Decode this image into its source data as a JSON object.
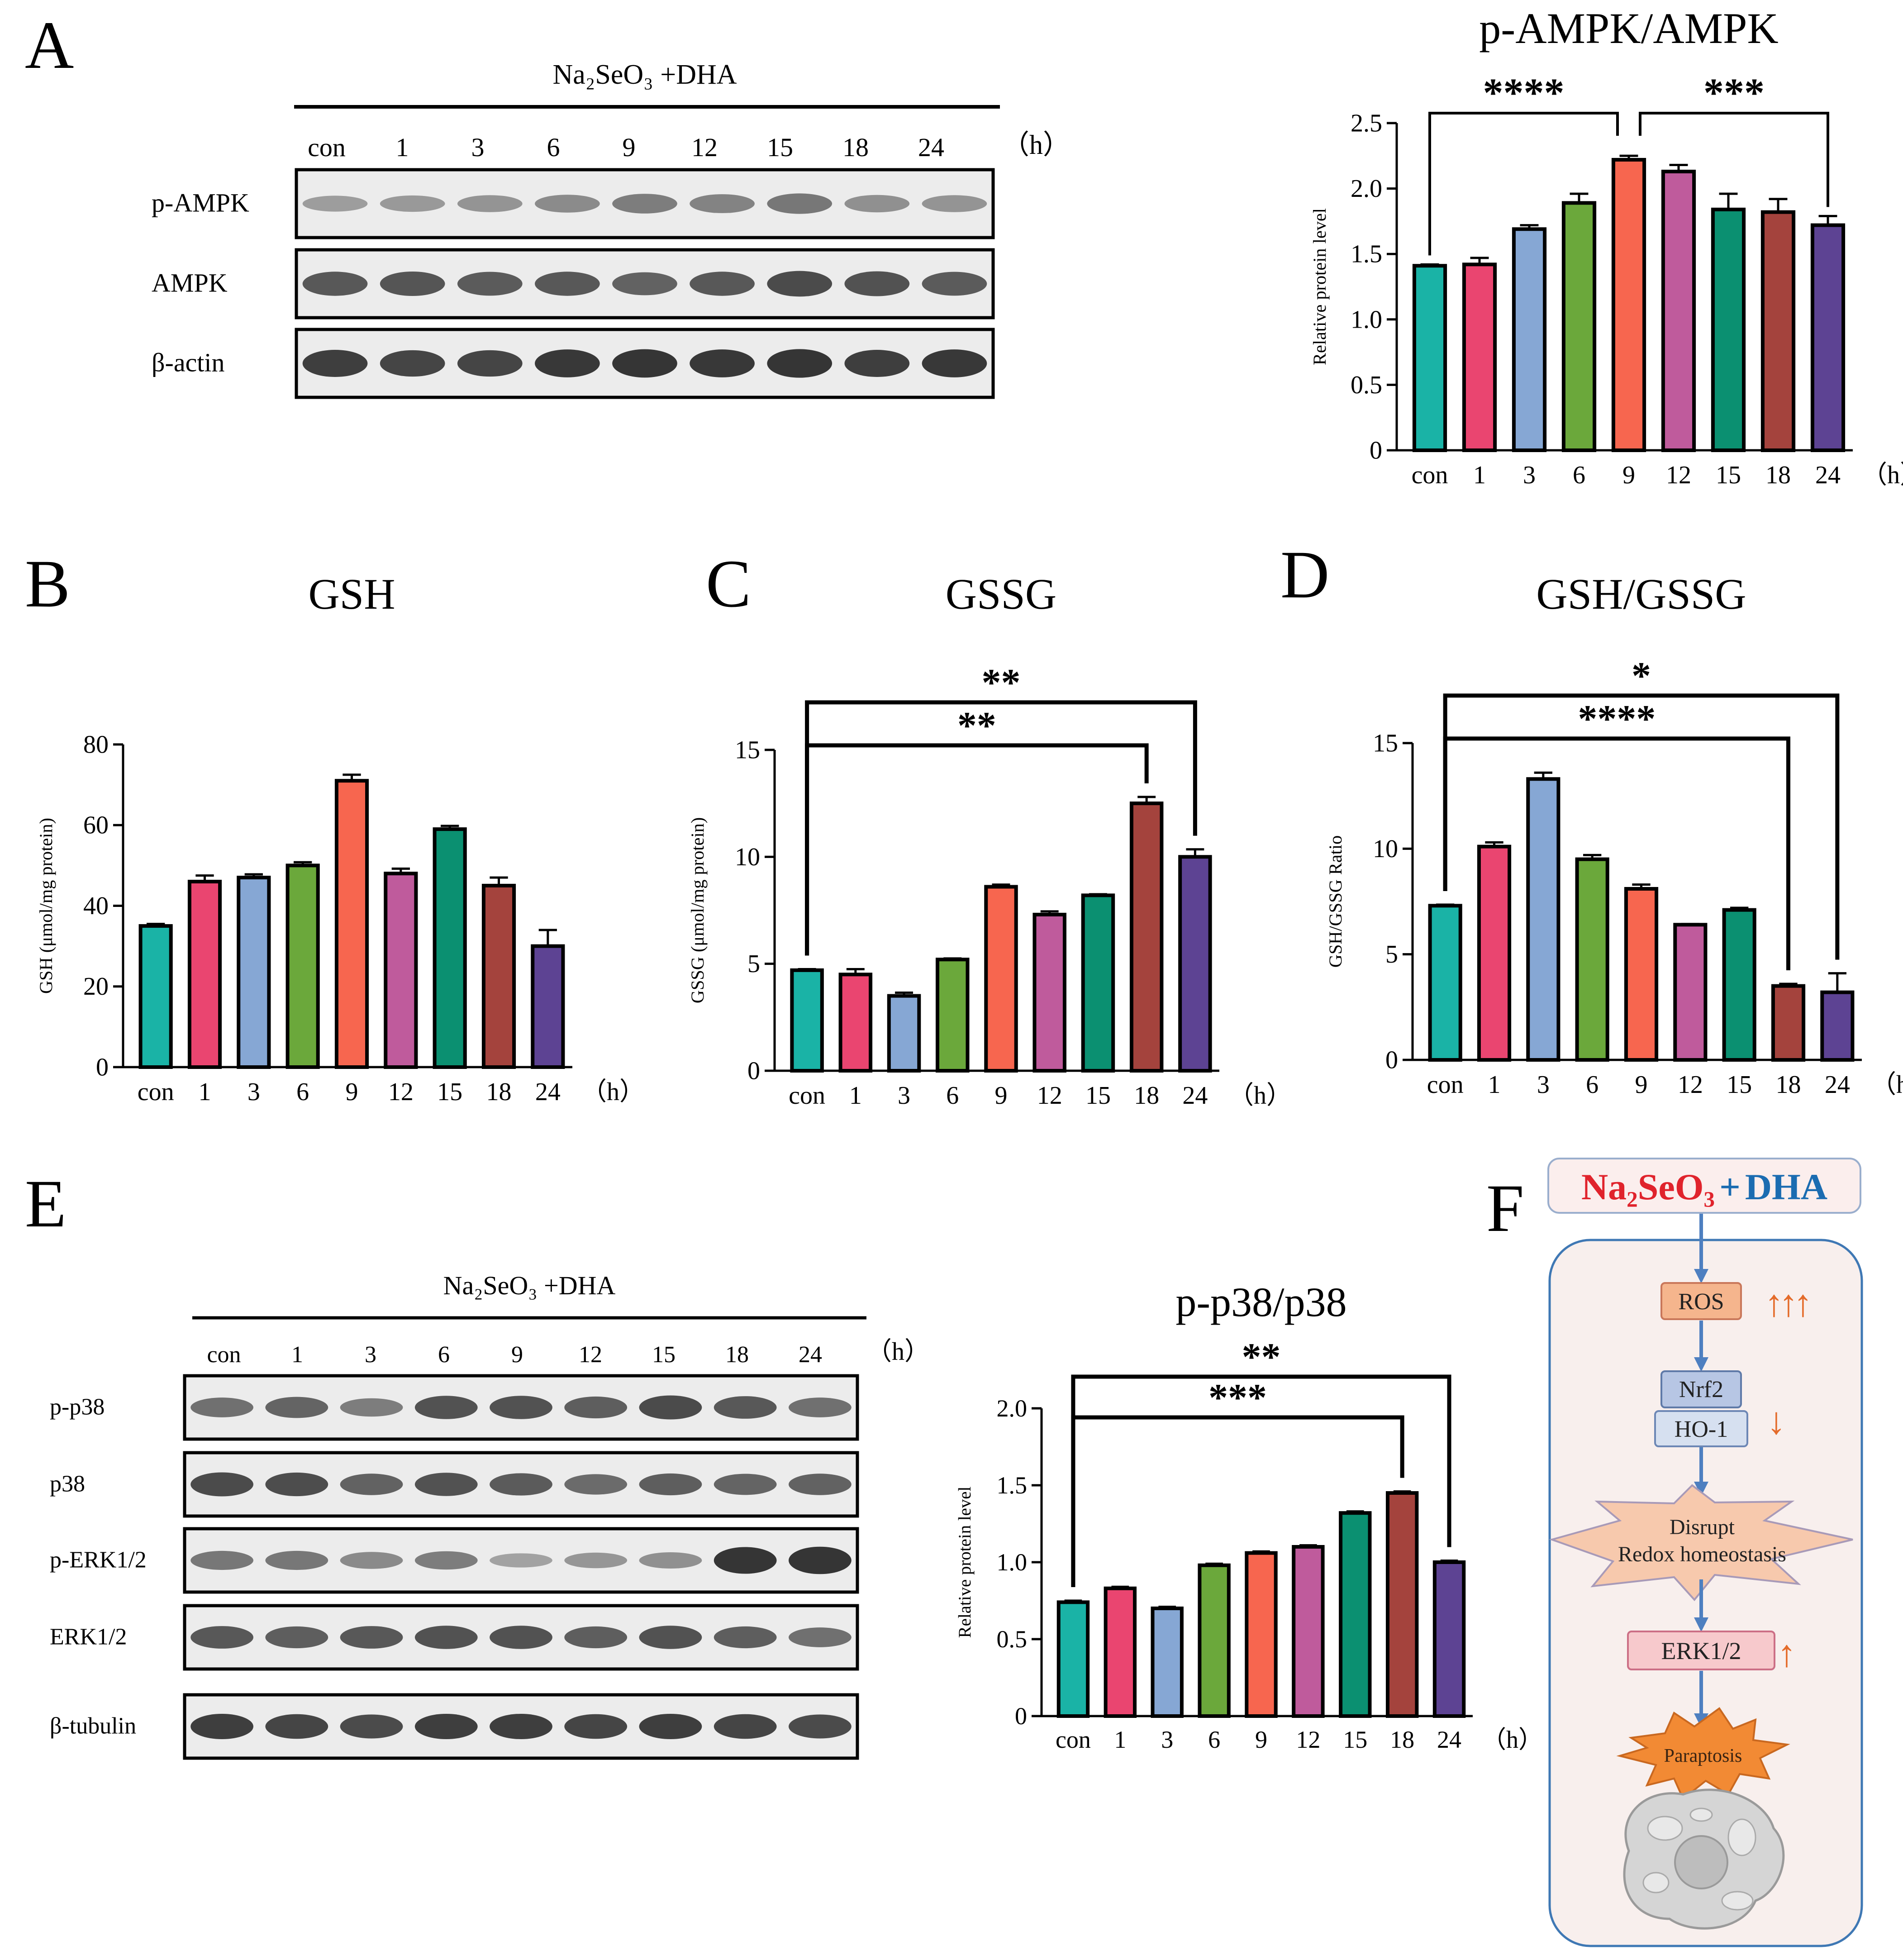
{
  "colors": {
    "bars": [
      "#1ab3a6",
      "#ea4570",
      "#86a7d4",
      "#6ba83b",
      "#f7664f",
      "#bf5b9c",
      "#0b9071",
      "#a4433d",
      "#5d4393"
    ],
    "band": "#2b2b2b",
    "flow_red": "#e0232c",
    "flow_blue": "#1b6cb1",
    "arrow_blue": "#4e7fc0",
    "arrow_orange": "#e46b2a",
    "cell_bg": "#f8efed",
    "cell_border": "#3f78b4",
    "ros_fill": "#f5b58d",
    "nrf_fill": "#b7c6e4",
    "disrupt_fill": "#f7c9ad",
    "erk_fill": "#f7c9cc",
    "paraptosis_fill": "#f28a34"
  },
  "panels": {
    "A": {
      "letter": "A",
      "blot_header": "Na₂SeO₃ +DHA",
      "lanes": [
        "con",
        "1",
        "3",
        "6",
        "9",
        "12",
        "15",
        "18",
        "24"
      ],
      "unit": "（h）",
      "rows": [
        "p-AMPK",
        "AMPK",
        "β-actin"
      ]
    },
    "B": {
      "letter": "B"
    },
    "C": {
      "letter": "C"
    },
    "D": {
      "letter": "D"
    },
    "E": {
      "letter": "E",
      "blot_header": "Na₂SeO₃ +DHA",
      "lanes": [
        "con",
        "1",
        "3",
        "6",
        "9",
        "12",
        "15",
        "18",
        "24"
      ],
      "unit": "（h）",
      "rows": [
        "p-p38",
        "p38",
        "p-ERK1/2",
        "ERK1/2",
        "β-tubulin"
      ]
    },
    "F": {
      "letter": "F",
      "top_red": "Na₂SeO₃",
      "top_plus": "+",
      "top_blue": "DHA",
      "ros": "ROS",
      "ros_arrows": "↑↑↑",
      "nrf2": "Nrf2",
      "ho1": "HO-1",
      "down_arrow": "↓",
      "disrupt_line1": "Disrupt",
      "disrupt_line2": "Redox homeostasis",
      "erk": "ERK1/2",
      "up_arrow": "↑",
      "paraptosis": "Paraptosis"
    }
  },
  "chart_data": [
    {
      "id": "ampk",
      "type": "bar",
      "title": "p-AMPK/AMPK",
      "ylabel": "Relative protein level",
      "xlabel": "",
      "unit": "（h）",
      "categories": [
        "con",
        "1",
        "3",
        "6",
        "9",
        "12",
        "15",
        "18",
        "24"
      ],
      "values": [
        1.41,
        1.42,
        1.69,
        1.89,
        2.22,
        2.13,
        1.84,
        1.82,
        1.72
      ],
      "errors": [
        0.01,
        0.05,
        0.03,
        0.07,
        0.03,
        0.05,
        0.12,
        0.1,
        0.07
      ],
      "ylim": [
        0,
        2.5
      ],
      "yticks": [
        "0",
        "0.5",
        "1.0",
        "1.5",
        "2.0",
        "2.5"
      ],
      "significance": [
        {
          "from": 0,
          "to": 4,
          "label": "****"
        },
        {
          "from": 4,
          "to": 8,
          "label": "***"
        }
      ]
    },
    {
      "id": "gsh",
      "type": "bar",
      "title": "GSH",
      "ylabel": "GSH (μmol/mg protein)",
      "xlabel": "",
      "unit": "（h）",
      "categories": [
        "con",
        "1",
        "3",
        "6",
        "9",
        "12",
        "15",
        "18",
        "24"
      ],
      "values": [
        35,
        46,
        47,
        50,
        71,
        48,
        59,
        45,
        30
      ],
      "errors": [
        0.5,
        1.5,
        0.8,
        0.8,
        1.5,
        1.2,
        0.8,
        2.0,
        4.0
      ],
      "ylim": [
        0,
        80
      ],
      "yticks": [
        "0",
        "20",
        "40",
        "60",
        "80"
      ],
      "significance": []
    },
    {
      "id": "gssg",
      "type": "bar",
      "title": "GSSG",
      "ylabel": "GSSG (μmol/mg protein)",
      "xlabel": "",
      "unit": "（h）",
      "categories": [
        "con",
        "1",
        "3",
        "6",
        "9",
        "12",
        "15",
        "18",
        "24"
      ],
      "values": [
        4.7,
        4.5,
        3.5,
        5.2,
        8.6,
        7.3,
        8.2,
        12.5,
        10.0
      ],
      "errors": [
        0.05,
        0.25,
        0.15,
        0.05,
        0.1,
        0.15,
        0.05,
        0.3,
        0.35
      ],
      "ylim": [
        0,
        15
      ],
      "yticks": [
        "0",
        "5",
        "10",
        "15"
      ],
      "significance": [
        {
          "from": 0,
          "to": 7,
          "label": "**"
        },
        {
          "from": 0,
          "to": 8,
          "label": "**"
        }
      ]
    },
    {
      "id": "ratio",
      "type": "bar",
      "title": "GSH/GSSG",
      "ylabel": "GSH/GSSG Ratio",
      "xlabel": "",
      "unit": "（h）",
      "categories": [
        "con",
        "1",
        "3",
        "6",
        "9",
        "12",
        "15",
        "18",
        "24"
      ],
      "values": [
        7.3,
        10.1,
        13.3,
        9.5,
        8.1,
        6.4,
        7.1,
        3.5,
        3.2
      ],
      "errors": [
        0.05,
        0.2,
        0.3,
        0.2,
        0.2,
        0.03,
        0.1,
        0.1,
        0.9
      ],
      "ylim": [
        0,
        15
      ],
      "yticks": [
        "0",
        "5",
        "10",
        "15"
      ],
      "significance": [
        {
          "from": 0,
          "to": 7,
          "label": "****"
        },
        {
          "from": 0,
          "to": 8,
          "label": "*"
        }
      ]
    },
    {
      "id": "p38",
      "type": "bar",
      "title": "p-p38/p38",
      "ylabel": "Relative protein level",
      "xlabel": "",
      "unit": "（h）",
      "categories": [
        "con",
        "1",
        "3",
        "6",
        "9",
        "12",
        "15",
        "18",
        "24"
      ],
      "values": [
        0.74,
        0.83,
        0.7,
        0.98,
        1.06,
        1.1,
        1.32,
        1.45,
        1.0
      ],
      "errors": [
        0.01,
        0.01,
        0.01,
        0.01,
        0.01,
        0.01,
        0.01,
        0.01,
        0.01
      ],
      "ylim": [
        0,
        2.0
      ],
      "yticks": [
        "0",
        "0.5",
        "1.0",
        "1.5",
        "2.0"
      ],
      "significance": [
        {
          "from": 0,
          "to": 7,
          "label": "***"
        },
        {
          "from": 0,
          "to": 8,
          "label": "**"
        }
      ]
    }
  ],
  "blot_data": {
    "A": [
      [
        0.25,
        0.28,
        0.32,
        0.38,
        0.5,
        0.45,
        0.55,
        0.35,
        0.32
      ],
      [
        0.8,
        0.82,
        0.78,
        0.8,
        0.72,
        0.8,
        0.9,
        0.85,
        0.78
      ],
      [
        1.0,
        0.95,
        0.95,
        1.05,
        1.08,
        1.05,
        1.1,
        1.0,
        1.05
      ]
    ],
    "E": [
      [
        0.6,
        0.7,
        0.5,
        0.85,
        0.85,
        0.75,
        0.9,
        0.8,
        0.6
      ],
      [
        0.9,
        0.88,
        0.72,
        0.85,
        0.78,
        0.65,
        0.75,
        0.7,
        0.72
      ],
      [
        0.55,
        0.55,
        0.4,
        0.5,
        0.2,
        0.3,
        0.35,
        1.1,
        1.15
      ],
      [
        0.8,
        0.75,
        0.8,
        0.85,
        0.85,
        0.75,
        0.85,
        0.75,
        0.6
      ],
      [
        1.0,
        0.95,
        0.9,
        1.0,
        1.0,
        0.95,
        1.0,
        0.95,
        0.9
      ]
    ]
  }
}
